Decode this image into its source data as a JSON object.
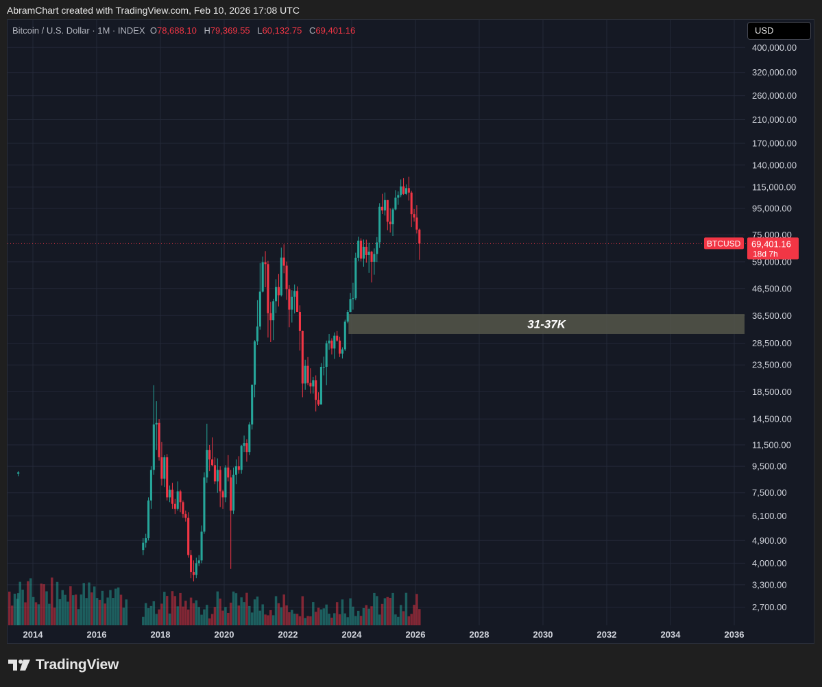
{
  "header": {
    "text": "AbramChart created with TradingView.com, Feb 10, 2026 17:08 UTC"
  },
  "legend": {
    "symbol": "Bitcoin / U.S. Dollar · 1M · INDEX",
    "o_label": "O",
    "o_value": "78,688.10",
    "h_label": "H",
    "h_value": "79,369.55",
    "l_label": "L",
    "l_value": "60,132.75",
    "c_label": "C",
    "c_value": "69,401.16"
  },
  "currency_button": "USD",
  "price_label": {
    "symbol": "BTCUSD",
    "price": "69,401.16",
    "countdown": "18d 7h"
  },
  "zone": {
    "label": "31-37K",
    "low": 31000,
    "high": 37000,
    "start_year": 2023.9,
    "end_year": 2036.5
  },
  "colors": {
    "up": "#26a69a",
    "down": "#f23645",
    "bg": "#151924",
    "grid": "#242938",
    "zone": "#55574a"
  },
  "footer": {
    "brand": "TradingView",
    "logo_icon": "tradingview-logo-icon"
  },
  "chart_data": {
    "type": "candlestick",
    "title": "Bitcoin / U.S. Dollar · 1M · INDEX",
    "y_scale": "log",
    "x_ticks": [
      "2014",
      "2016",
      "2018",
      "2020",
      "2022",
      "2024",
      "2026",
      "2028",
      "2030",
      "2032",
      "2034",
      "2036"
    ],
    "y_ticks": [
      400000,
      320000,
      260000,
      210000,
      170000,
      140000,
      115000,
      95000,
      75000,
      59000,
      46500,
      36500,
      28500,
      23500,
      18500,
      14500,
      11500,
      9500,
      7500,
      6100,
      4900,
      4000,
      3300,
      2700
    ],
    "y_tick_labels": [
      "400,000.00",
      "320,000.00",
      "260,000.00",
      "210,000.00",
      "170,000.00",
      "140,000.00",
      "115,000.00",
      "95,000.00",
      "75,000.00",
      "59,000.00",
      "46,500.00",
      "36,500.00",
      "28,500.00",
      "23,500.00",
      "18,500.00",
      "14,500.00",
      "11,500.00",
      "9,500.00",
      "7,500.00",
      "6,100.00",
      "4,900.00",
      "4,000.00",
      "3,300.00",
      "2,700.00"
    ],
    "last_price": 69401.16,
    "grid": true,
    "candles": [
      [
        "2013-07",
        8900,
        9100,
        8700,
        9000
      ],
      [
        "2017-06",
        4500,
        5000,
        4300,
        4800
      ],
      [
        "2017-07",
        4800,
        5200,
        4600,
        5000
      ],
      [
        "2017-08",
        5000,
        7200,
        4900,
        7000
      ],
      [
        "2017-09",
        7000,
        9500,
        6500,
        9200
      ],
      [
        "2017-10",
        9200,
        19600,
        8800,
        13800
      ],
      [
        "2017-11",
        13800,
        17000,
        11000,
        14000
      ],
      [
        "2017-12",
        14000,
        14500,
        10000,
        10300
      ],
      [
        "2018-01",
        10300,
        11800,
        8000,
        8500
      ],
      [
        "2018-02",
        8500,
        10500,
        7900,
        10300
      ],
      [
        "2018-03",
        10300,
        10600,
        7000,
        7200
      ],
      [
        "2018-04",
        7200,
        8000,
        6900,
        7700
      ],
      [
        "2018-05",
        7700,
        8200,
        6500,
        6800
      ],
      [
        "2018-06",
        6800,
        7100,
        6200,
        6500
      ],
      [
        "2018-07",
        6500,
        8300,
        6400,
        7600
      ],
      [
        "2018-08",
        7600,
        7700,
        6300,
        6900
      ],
      [
        "2018-09",
        6900,
        7000,
        6000,
        6200
      ],
      [
        "2018-10",
        6200,
        6400,
        5800,
        6000
      ],
      [
        "2018-11",
        6000,
        6300,
        4200,
        4300
      ],
      [
        "2018-12",
        4300,
        4500,
        3500,
        3700
      ],
      [
        "2019-01",
        3700,
        4100,
        3400,
        3600
      ],
      [
        "2019-02",
        3600,
        4200,
        3500,
        4000
      ],
      [
        "2019-03",
        4000,
        4300,
        3900,
        4100
      ],
      [
        "2019-04",
        4100,
        5600,
        4000,
        5300
      ],
      [
        "2019-05",
        5300,
        9000,
        5200,
        8600
      ],
      [
        "2019-06",
        8600,
        13900,
        8200,
        11000
      ],
      [
        "2019-07",
        11000,
        11500,
        9100,
        10100
      ],
      [
        "2019-08",
        10100,
        12300,
        9500,
        9600
      ],
      [
        "2019-09",
        9600,
        10300,
        8100,
        8300
      ],
      [
        "2019-10",
        8300,
        10200,
        7500,
        9200
      ],
      [
        "2019-11",
        9200,
        9500,
        6600,
        7600
      ],
      [
        "2019-12",
        7600,
        7700,
        6500,
        7200
      ],
      [
        "2020-01",
        7200,
        9600,
        6900,
        9400
      ],
      [
        "2020-02",
        9400,
        10500,
        8300,
        8600
      ],
      [
        "2020-03",
        8600,
        9200,
        3800,
        6400
      ],
      [
        "2020-04",
        6400,
        9400,
        6200,
        8800
      ],
      [
        "2020-05",
        8800,
        10100,
        8100,
        9500
      ],
      [
        "2020-06",
        9500,
        10400,
        8900,
        9200
      ],
      [
        "2020-07",
        9200,
        11500,
        8900,
        11400
      ],
      [
        "2020-08",
        11400,
        12500,
        10800,
        11700
      ],
      [
        "2020-09",
        11700,
        12100,
        9900,
        10800
      ],
      [
        "2020-10",
        10800,
        14100,
        10500,
        13800
      ],
      [
        "2020-11",
        13800,
        19500,
        13200,
        19700
      ],
      [
        "2020-12",
        19700,
        29300,
        17600,
        29000
      ],
      [
        "2021-01",
        29000,
        41900,
        28100,
        33100
      ],
      [
        "2021-02",
        33100,
        58400,
        32200,
        45200
      ],
      [
        "2021-03",
        45200,
        61800,
        44900,
        58800
      ],
      [
        "2021-04",
        58800,
        64900,
        47000,
        57800
      ],
      [
        "2021-05",
        57800,
        59500,
        30000,
        37300
      ],
      [
        "2021-06",
        37300,
        41300,
        28800,
        35000
      ],
      [
        "2021-07",
        35000,
        42400,
        29300,
        41500
      ],
      [
        "2021-08",
        41500,
        50500,
        37300,
        47100
      ],
      [
        "2021-09",
        47100,
        52900,
        39600,
        43800
      ],
      [
        "2021-10",
        43800,
        67000,
        43300,
        61300
      ],
      [
        "2021-11",
        61300,
        69000,
        53300,
        57000
      ],
      [
        "2021-12",
        57000,
        59100,
        42000,
        46200
      ],
      [
        "2022-01",
        46200,
        47900,
        32900,
        38500
      ],
      [
        "2022-02",
        38500,
        45800,
        34300,
        43200
      ],
      [
        "2022-03",
        43200,
        48200,
        37200,
        45500
      ],
      [
        "2022-04",
        45500,
        47400,
        37700,
        37700
      ],
      [
        "2022-05",
        37700,
        40000,
        26700,
        31800
      ],
      [
        "2022-06",
        31800,
        31900,
        17600,
        19900
      ],
      [
        "2022-07",
        19900,
        24600,
        18800,
        23300
      ],
      [
        "2022-08",
        23300,
        25200,
        19600,
        20000
      ],
      [
        "2022-09",
        20000,
        22800,
        18200,
        19400
      ],
      [
        "2022-10",
        19400,
        21100,
        18200,
        20500
      ],
      [
        "2022-11",
        20500,
        21400,
        15500,
        17200
      ],
      [
        "2022-12",
        17200,
        18400,
        16300,
        16500
      ],
      [
        "2023-01",
        16500,
        23900,
        16500,
        23100
      ],
      [
        "2023-02",
        23100,
        25300,
        21400,
        23100
      ],
      [
        "2023-03",
        23100,
        29200,
        19600,
        28500
      ],
      [
        "2023-04",
        28500,
        31000,
        26900,
        29200
      ],
      [
        "2023-05",
        29200,
        29800,
        25800,
        27200
      ],
      [
        "2023-06",
        27200,
        31400,
        24800,
        30500
      ],
      [
        "2023-07",
        30500,
        31800,
        28900,
        29200
      ],
      [
        "2023-08",
        29200,
        30200,
        25200,
        26000
      ],
      [
        "2023-09",
        26000,
        27500,
        24900,
        27000
      ],
      [
        "2023-10",
        27000,
        35200,
        26600,
        34600
      ],
      [
        "2023-11",
        34600,
        38400,
        34100,
        37700
      ],
      [
        "2023-12",
        37700,
        44700,
        37600,
        42300
      ],
      [
        "2024-01",
        42300,
        48900,
        38500,
        42600
      ],
      [
        "2024-02",
        42600,
        64000,
        41900,
        61200
      ],
      [
        "2024-03",
        61200,
        73800,
        59300,
        71300
      ],
      [
        "2024-04",
        71300,
        72800,
        59200,
        60700
      ],
      [
        "2024-05",
        60700,
        72000,
        56500,
        67500
      ],
      [
        "2024-06",
        67500,
        71900,
        58600,
        62700
      ],
      [
        "2024-07",
        62700,
        70000,
        53500,
        64600
      ],
      [
        "2024-08",
        64600,
        65100,
        49100,
        59000
      ],
      [
        "2024-09",
        59000,
        66500,
        52600,
        63300
      ],
      [
        "2024-10",
        63300,
        73600,
        58900,
        70200
      ],
      [
        "2024-11",
        70200,
        99600,
        66800,
        96400
      ],
      [
        "2024-12",
        96400,
        108300,
        90500,
        93400
      ],
      [
        "2025-01",
        93400,
        109600,
        89200,
        102400
      ],
      [
        "2025-02",
        102400,
        102500,
        78200,
        84400
      ],
      [
        "2025-03",
        84400,
        95000,
        76600,
        82500
      ],
      [
        "2025-04",
        82500,
        95700,
        74400,
        94200
      ],
      [
        "2025-05",
        94200,
        111900,
        93400,
        104600
      ],
      [
        "2025-06",
        104600,
        110600,
        98200,
        107100
      ],
      [
        "2025-07",
        107100,
        123200,
        105100,
        115700
      ],
      [
        "2025-08",
        115700,
        124500,
        107300,
        108200
      ],
      [
        "2025-09",
        108200,
        117800,
        107200,
        114000
      ],
      [
        "2025-10",
        114000,
        126200,
        102000,
        109500
      ],
      [
        "2025-11",
        109500,
        111200,
        80500,
        90400
      ],
      [
        "2025-12",
        90400,
        94500,
        84500,
        87600
      ],
      [
        "2026-01",
        87600,
        97900,
        76000,
        78688.1
      ],
      [
        "2026-02",
        78688.1,
        79369.55,
        60132.75,
        69401.16
      ]
    ]
  }
}
